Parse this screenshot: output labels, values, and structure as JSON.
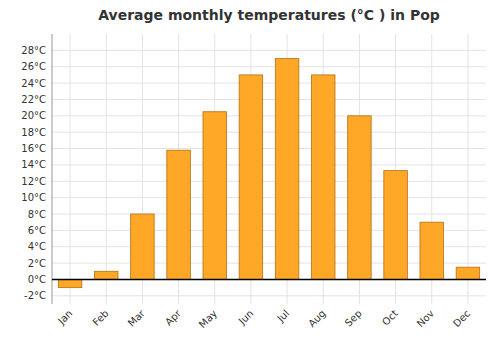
{
  "chart_data": {
    "type": "bar",
    "title": "Average monthly temperatures (°C ) in Pop",
    "categories": [
      "Jan",
      "Feb",
      "Mar",
      "Apr",
      "May",
      "Jun",
      "Jul",
      "Aug",
      "Sep",
      "Oct",
      "Nov",
      "Dec"
    ],
    "values": [
      -1.0,
      1.0,
      8.0,
      15.8,
      20.5,
      25.0,
      27.0,
      25.0,
      20.0,
      13.3,
      7.0,
      1.5
    ],
    "color": "#FFA726",
    "ylim": [
      -3,
      30
    ],
    "yticks": [
      {
        "value": -2,
        "label": "-2°C"
      },
      {
        "value": 0,
        "label": "0°C"
      },
      {
        "value": 2,
        "label": "2°C"
      },
      {
        "value": 4,
        "label": "4°C"
      },
      {
        "value": 6,
        "label": "6°C"
      },
      {
        "value": 8,
        "label": "8°C"
      },
      {
        "value": 10,
        "label": "10°C"
      },
      {
        "value": 12,
        "label": "12°C"
      },
      {
        "value": 14,
        "label": "14°C"
      },
      {
        "value": 16,
        "label": "16°C"
      },
      {
        "value": 18,
        "label": "18°C"
      },
      {
        "value": 20,
        "label": "20°C"
      },
      {
        "value": 22,
        "label": "22°C"
      },
      {
        "value": 24,
        "label": "24°C"
      },
      {
        "value": 26,
        "label": "26°C"
      },
      {
        "value": 28,
        "label": "28°C"
      }
    ],
    "grid": true
  }
}
